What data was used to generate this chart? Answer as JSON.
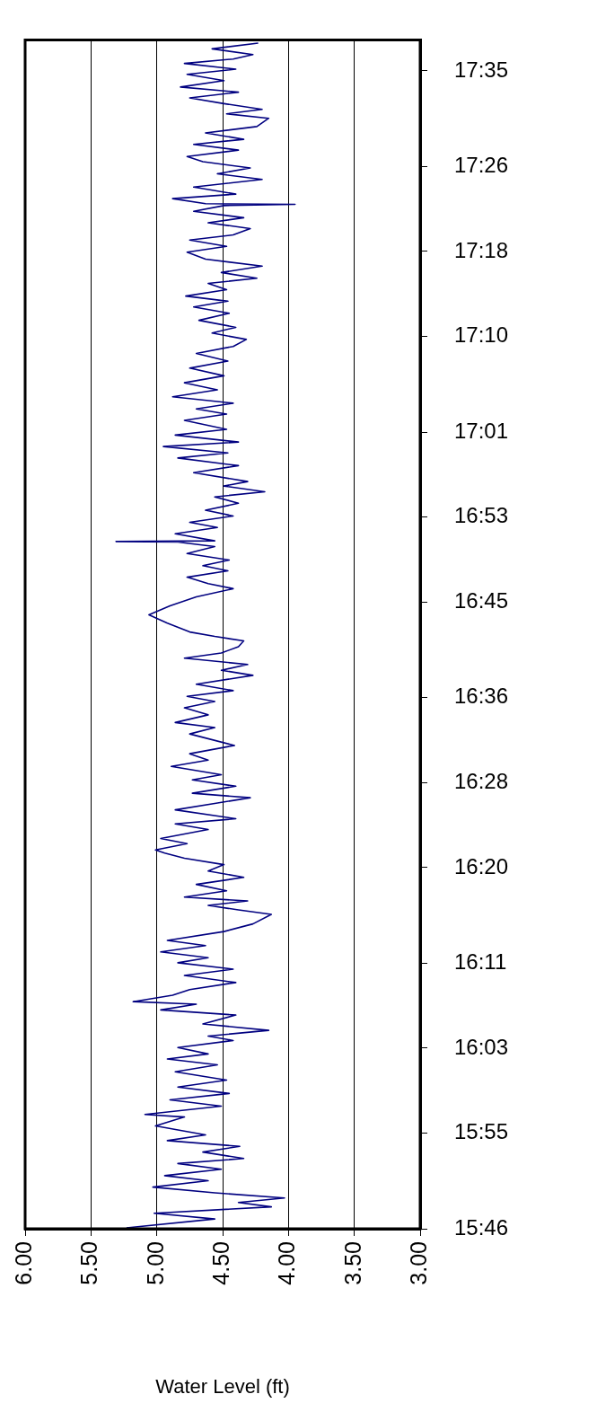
{
  "chart_data": {
    "type": "line",
    "orientation": "horizontal",
    "xlabel": "Water Level (ft)",
    "ylim": [
      15.7667,
      17.632
    ],
    "xlim": [
      6,
      3
    ],
    "yticks": [
      {
        "value": 15.7667,
        "label": "15:46"
      },
      {
        "value": 15.9167,
        "label": "15:55"
      },
      {
        "value": 16.05,
        "label": "16:03"
      },
      {
        "value": 16.1833,
        "label": "16:11"
      },
      {
        "value": 16.3333,
        "label": "16:20"
      },
      {
        "value": 16.4667,
        "label": "16:28"
      },
      {
        "value": 16.6,
        "label": "16:36"
      },
      {
        "value": 16.75,
        "label": "16:45"
      },
      {
        "value": 16.8833,
        "label": "16:53"
      },
      {
        "value": 17.0167,
        "label": "17:01"
      },
      {
        "value": 17.1667,
        "label": "17:10"
      },
      {
        "value": 17.3,
        "label": "17:18"
      },
      {
        "value": 17.4333,
        "label": "17:26"
      },
      {
        "value": 17.5833,
        "label": "17:35"
      }
    ],
    "xticks": [
      {
        "value": 6,
        "label": "6.00"
      },
      {
        "value": 5.5,
        "label": "5.50"
      },
      {
        "value": 5,
        "label": "5.00"
      },
      {
        "value": 4.5,
        "label": "4.50"
      },
      {
        "value": 4,
        "label": "4.00"
      },
      {
        "value": 3.5,
        "label": "3.50"
      },
      {
        "value": 3,
        "label": "3.00"
      }
    ],
    "grid": "x",
    "legend": false,
    "marker": "none",
    "line_style": "solid",
    "series": [
      {
        "color": "#000080",
        "x": [
          15.768,
          15.782,
          15.791,
          15.801,
          15.808,
          15.815,
          15.823,
          15.832,
          15.842,
          15.85,
          15.86,
          15.869,
          15.877,
          15.887,
          15.896,
          15.905,
          15.914,
          15.928,
          15.942,
          15.946,
          15.959,
          15.969,
          15.979,
          15.989,
          16.0,
          16.013,
          16.024,
          16.033,
          16.041,
          16.051,
          16.062,
          16.069,
          16.078,
          16.088,
          16.102,
          16.11,
          16.119,
          16.123,
          16.133,
          16.142,
          16.153,
          16.164,
          16.174,
          16.184,
          16.192,
          16.201,
          16.211,
          16.219,
          16.233,
          16.245,
          16.26,
          16.267,
          16.274,
          16.281,
          16.287,
          16.297,
          16.307,
          16.318,
          16.328,
          16.338,
          16.348,
          16.356,
          16.361,
          16.371,
          16.379,
          16.393,
          16.402,
          16.41,
          16.424,
          16.434,
          16.443,
          16.45,
          16.461,
          16.471,
          16.479,
          16.492,
          16.502,
          16.512,
          16.525,
          16.543,
          16.553,
          16.561,
          16.573,
          16.584,
          16.594,
          16.602,
          16.611,
          16.621,
          16.635,
          16.643,
          16.652,
          16.662,
          16.67,
          16.68,
          16.689,
          16.696,
          16.703,
          16.717,
          16.73,
          16.744,
          16.758,
          16.771,
          16.779,
          16.789,
          16.799,
          16.807,
          16.816,
          16.826,
          16.837,
          16.844,
          16.845,
          16.846,
          16.857,
          16.867,
          16.875,
          16.885,
          16.894,
          16.905,
          16.915,
          16.923,
          16.932,
          16.939,
          16.953,
          16.964,
          16.976,
          16.984,
          16.994,
          17.001,
          17.012,
          17.021,
          17.035,
          17.045,
          17.053,
          17.062,
          17.072,
          17.083,
          17.094,
          17.105,
          17.117,
          17.128,
          17.14,
          17.151,
          17.162,
          17.172,
          17.181,
          17.192,
          17.203,
          17.213,
          17.222,
          17.23,
          17.24,
          17.25,
          17.258,
          17.267,
          17.277,
          17.288,
          17.299,
          17.308,
          17.318,
          17.326,
          17.336,
          17.345,
          17.353,
          17.363,
          17.372,
          17.374,
          17.375,
          17.383,
          17.39,
          17.401,
          17.413,
          17.422,
          17.431,
          17.441,
          17.449,
          17.459,
          17.468,
          17.476,
          17.486,
          17.496,
          17.509,
          17.516,
          17.523,
          17.532,
          17.541,
          17.55,
          17.558,
          17.568,
          17.578,
          17.586,
          17.595,
          17.602,
          17.609,
          17.618,
          17.627
        ],
        "values": [
          5.23,
          4.56,
          5.02,
          4.13,
          4.38,
          4.03,
          4.56,
          5.03,
          4.61,
          4.94,
          4.51,
          4.84,
          4.34,
          4.65,
          4.37,
          4.92,
          4.63,
          5.01,
          4.79,
          5.09,
          4.51,
          4.9,
          4.45,
          4.84,
          4.47,
          4.86,
          4.54,
          4.92,
          4.61,
          4.84,
          4.42,
          4.61,
          4.15,
          4.65,
          4.4,
          4.97,
          4.7,
          5.18,
          4.88,
          4.75,
          4.4,
          4.79,
          4.42,
          4.84,
          4.61,
          4.97,
          4.63,
          4.92,
          4.49,
          4.27,
          4.13,
          4.38,
          4.61,
          4.31,
          4.79,
          4.47,
          4.7,
          4.34,
          4.61,
          4.49,
          4.79,
          4.94,
          5.01,
          4.77,
          4.97,
          4.61,
          4.86,
          4.4,
          4.86,
          4.56,
          4.29,
          4.73,
          4.4,
          4.73,
          4.51,
          4.89,
          4.61,
          4.75,
          4.41,
          4.75,
          4.56,
          4.86,
          4.61,
          4.79,
          4.56,
          4.77,
          4.42,
          4.7,
          4.27,
          4.51,
          4.31,
          4.79,
          4.51,
          4.38,
          4.34,
          4.56,
          4.75,
          4.92,
          5.06,
          4.9,
          4.7,
          4.42,
          4.61,
          4.77,
          4.46,
          4.65,
          4.45,
          4.77,
          4.56,
          4.84,
          5.31,
          4.56,
          4.86,
          4.54,
          4.75,
          4.42,
          4.63,
          4.38,
          4.56,
          4.18,
          4.49,
          4.31,
          4.72,
          4.38,
          4.84,
          4.46,
          4.95,
          4.38,
          4.86,
          4.47,
          4.79,
          4.47,
          4.7,
          4.42,
          4.88,
          4.54,
          4.79,
          4.49,
          4.75,
          4.46,
          4.7,
          4.42,
          4.32,
          4.58,
          4.4,
          4.68,
          4.45,
          4.72,
          4.46,
          4.78,
          4.47,
          4.61,
          4.24,
          4.51,
          4.2,
          4.63,
          4.77,
          4.47,
          4.75,
          4.42,
          4.29,
          4.61,
          4.34,
          4.72,
          4.49,
          3.95,
          4.63,
          4.88,
          4.4,
          4.72,
          4.2,
          4.54,
          4.29,
          4.65,
          4.77,
          4.38,
          4.72,
          4.34,
          4.63,
          4.24,
          4.15,
          4.47,
          4.2,
          4.49,
          4.75,
          4.38,
          4.82,
          4.49,
          4.77,
          4.4,
          4.79,
          4.42,
          4.27,
          4.58,
          4.23
        ]
      }
    ]
  }
}
